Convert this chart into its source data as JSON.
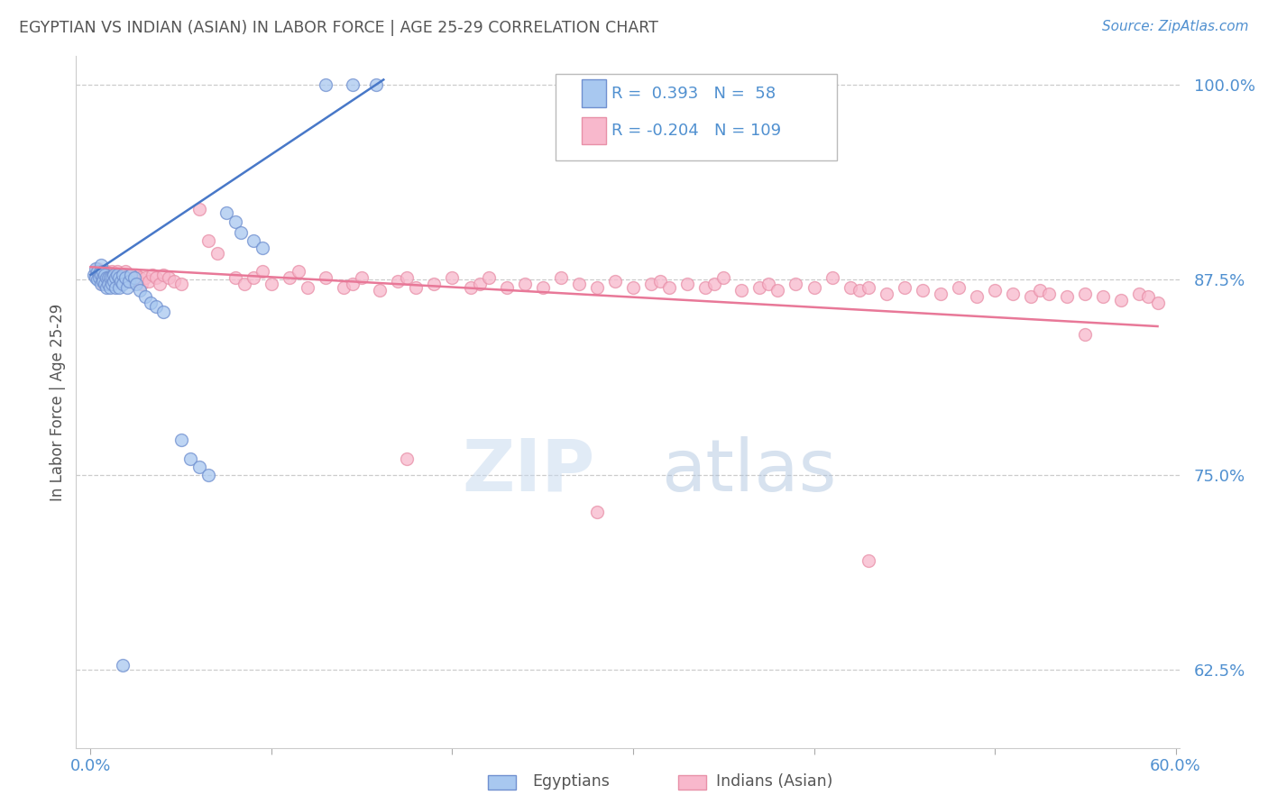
{
  "title": "EGYPTIAN VS INDIAN (ASIAN) IN LABOR FORCE | AGE 25-29 CORRELATION CHART",
  "source": "Source: ZipAtlas.com",
  "ylabel": "In Labor Force | Age 25-29",
  "xlim": [
    -0.008,
    0.602
  ],
  "ylim": [
    0.575,
    1.018
  ],
  "yticks": [
    0.625,
    0.75,
    0.875,
    1.0
  ],
  "ytick_labels": [
    "62.5%",
    "75.0%",
    "87.5%",
    "100.0%"
  ],
  "xticks": [
    0.0,
    0.1,
    0.2,
    0.3,
    0.4,
    0.5,
    0.6
  ],
  "xtick_labels": [
    "0.0%",
    "",
    "",
    "",
    "",
    "",
    "60.0%"
  ],
  "background_color": "#ffffff",
  "grid_color": "#cccccc",
  "blue_color": "#a8c8f0",
  "blue_edge_color": "#7090d0",
  "pink_color": "#f8b8cc",
  "pink_edge_color": "#e890a8",
  "blue_line_color": "#4878c8",
  "pink_line_color": "#e87898",
  "title_color": "#555555",
  "axis_color": "#5090d0",
  "legend_r_blue": "0.393",
  "legend_n_blue": "58",
  "legend_r_pink": "-0.204",
  "legend_n_pink": "109",
  "blue_line_x0": 0.0,
  "blue_line_y0": 0.878,
  "blue_line_x1": 0.162,
  "blue_line_y1": 1.003,
  "pink_line_x0": 0.0,
  "pink_line_y0": 0.883,
  "pink_line_x1": 0.59,
  "pink_line_y1": 0.845
}
